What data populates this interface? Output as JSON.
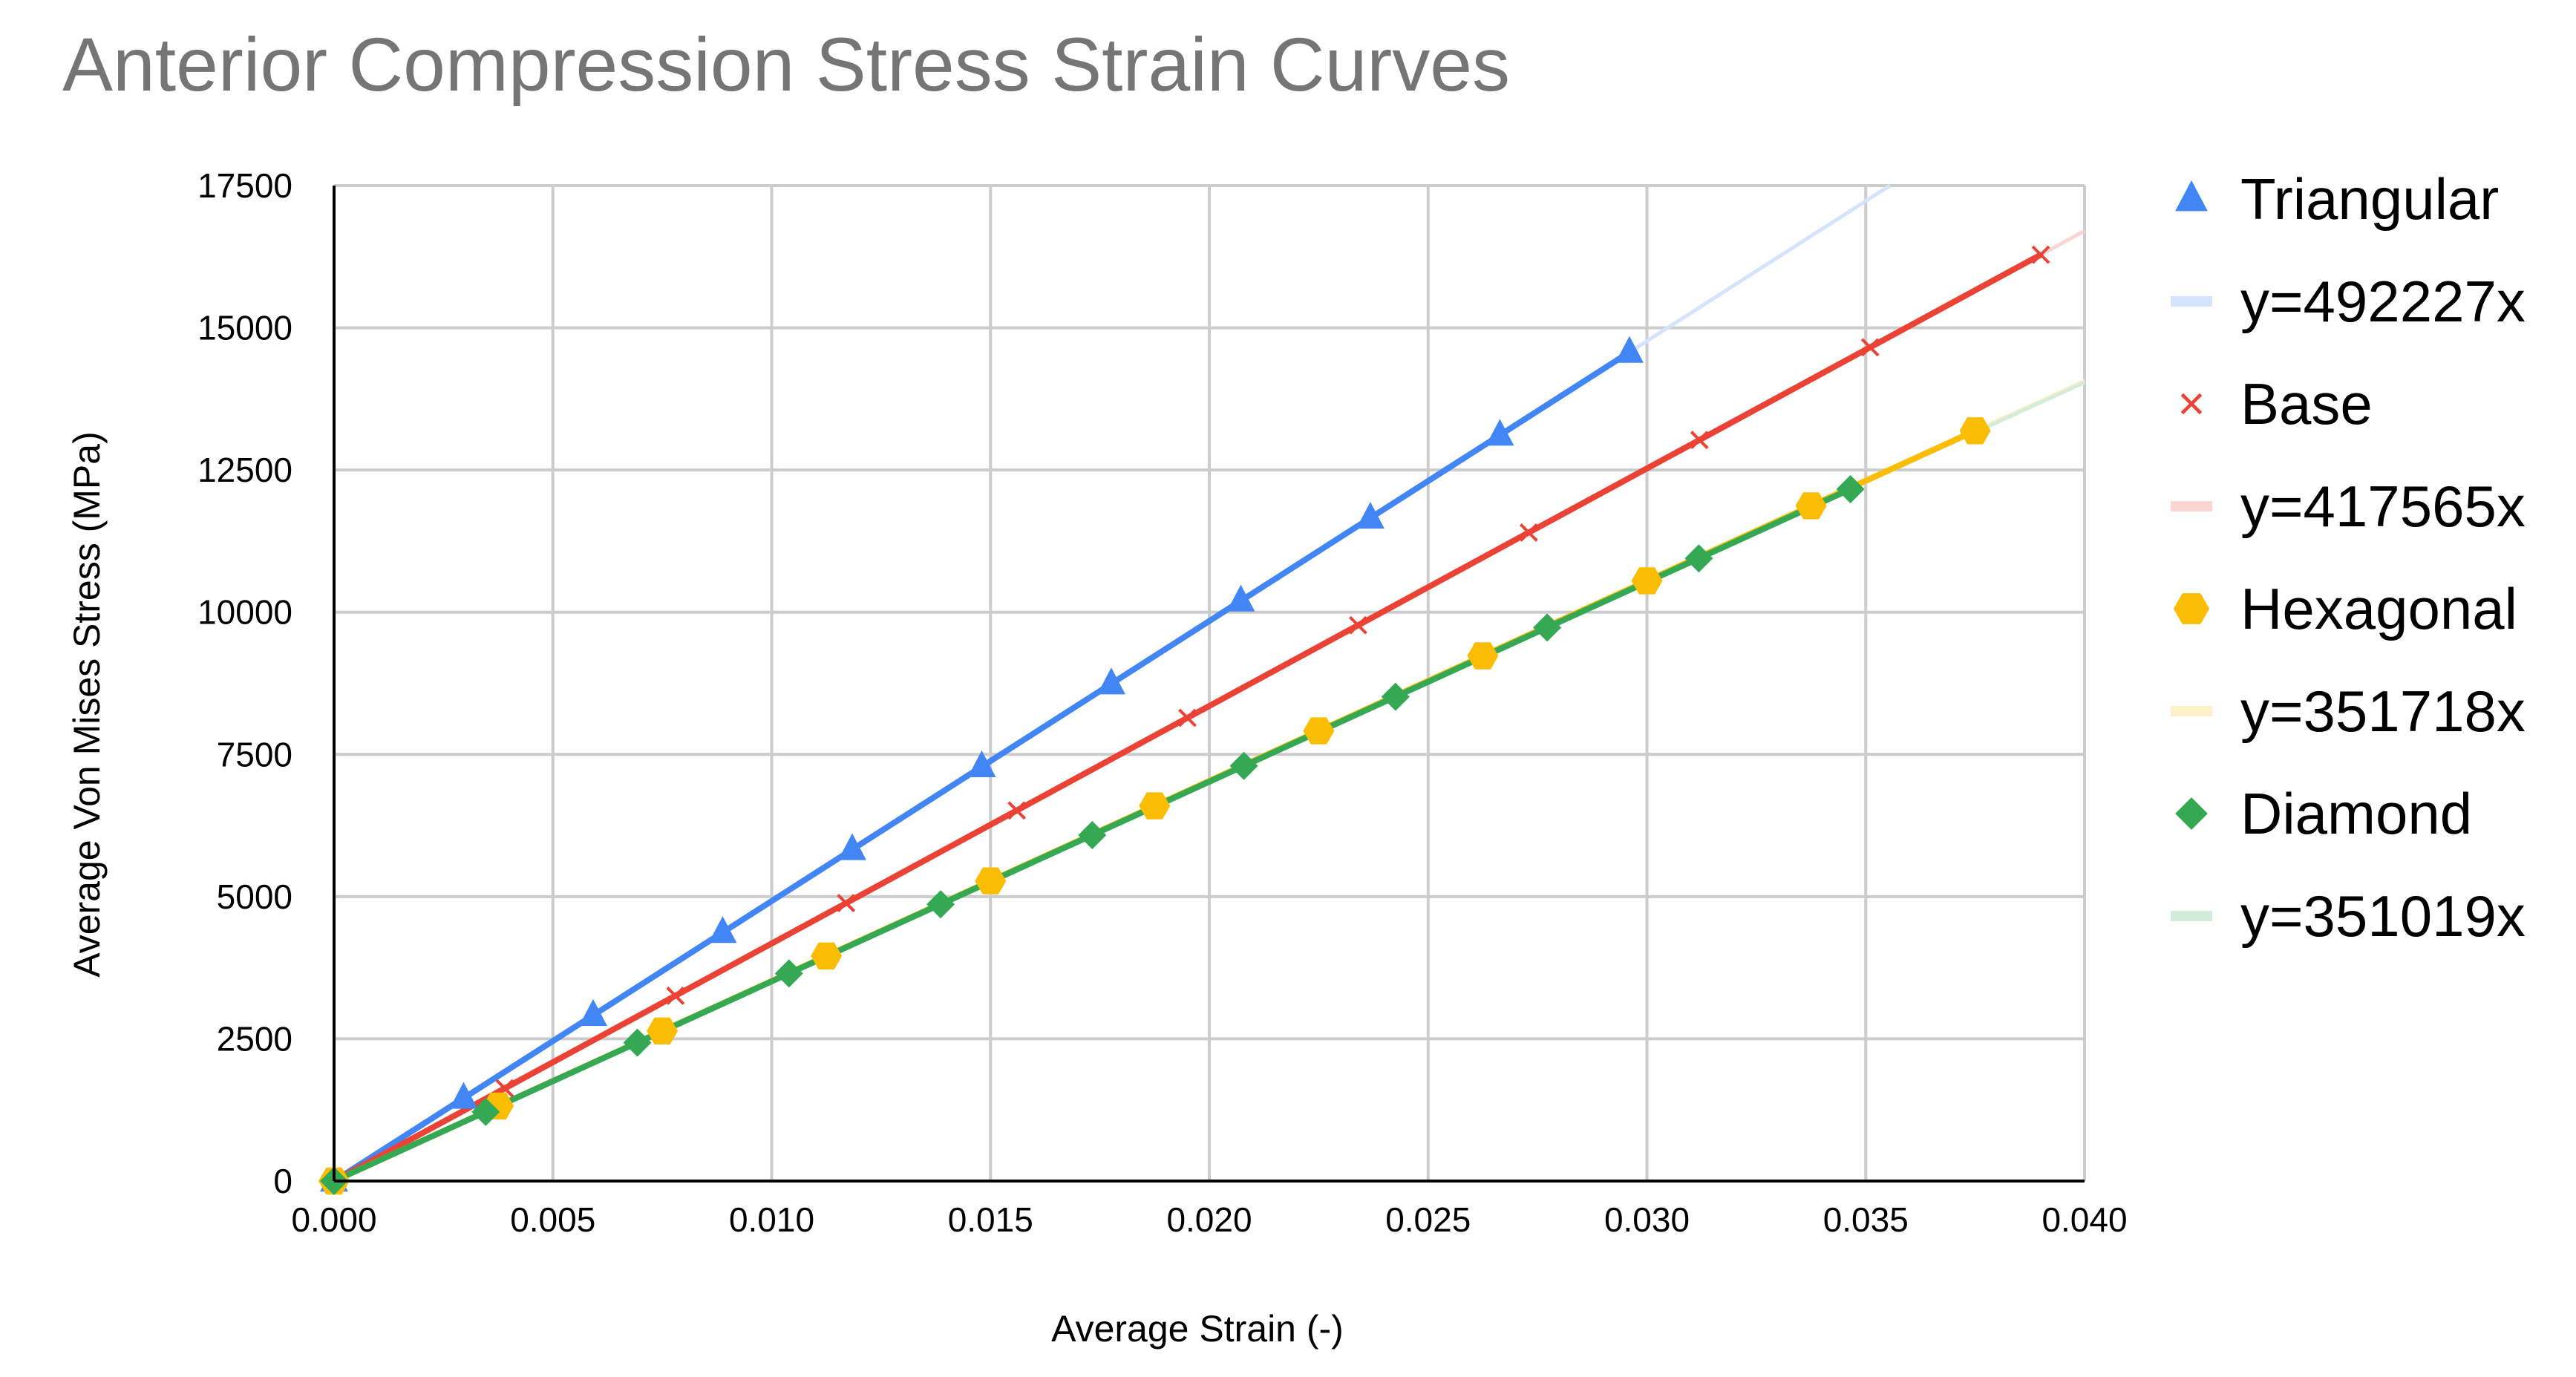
{
  "chart_data": {
    "type": "scatter",
    "title": "Anterior Compression Stress Strain Curves",
    "xlabel": "Average Strain (-)",
    "ylabel": "Average Von Mises Stress (MPa)",
    "xlim": [
      0,
      0.04
    ],
    "ylim": [
      0,
      17500
    ],
    "x_ticks": [
      0,
      0.005,
      0.01,
      0.015,
      0.02,
      0.025,
      0.03,
      0.035,
      0.04
    ],
    "x_tick_labels": [
      "0.000",
      "0.005",
      "0.010",
      "0.015",
      "0.020",
      "0.025",
      "0.030",
      "0.035",
      "0.040"
    ],
    "y_ticks": [
      0,
      2500,
      5000,
      7500,
      10000,
      12500,
      15000,
      17500
    ],
    "y_tick_labels": [
      "0",
      "2500",
      "5000",
      "7500",
      "10000",
      "12500",
      "15000",
      "17500"
    ],
    "grid": true,
    "legend_position": "right",
    "series": [
      {
        "name": "Triangular",
        "color": "#4285f4",
        "marker": "triangle",
        "trendline": "y=492227x",
        "slope": 492227,
        "x": [
          0,
          0.00296,
          0.00592,
          0.00888,
          0.01184,
          0.0148,
          0.01776,
          0.02072,
          0.02368,
          0.02664,
          0.0296
        ],
        "y": [
          0,
          1457,
          2914,
          4371,
          5828,
          7285,
          8742,
          10199,
          11656,
          13113,
          14570
        ]
      },
      {
        "name": "Base",
        "color": "#ea4335",
        "marker": "x",
        "trendline": "y=417565x",
        "slope": 417565,
        "x": [
          0,
          0.0039,
          0.0078,
          0.0117,
          0.0156,
          0.0195,
          0.0234,
          0.0273,
          0.0312,
          0.0351,
          0.039
        ],
        "y": [
          0,
          1629,
          3257,
          4886,
          6514,
          8143,
          9771,
          11400,
          13028,
          14657,
          16285
        ]
      },
      {
        "name": "Hexagonal",
        "color": "#fbbc04",
        "marker": "hexagon",
        "trendline": "y=351718x",
        "slope": 351718,
        "x": [
          0,
          0.00375,
          0.0075,
          0.01125,
          0.015,
          0.01875,
          0.0225,
          0.02625,
          0.03,
          0.03375,
          0.0375
        ],
        "y": [
          0,
          1319,
          2638,
          3957,
          5276,
          6595,
          7914,
          9233,
          10552,
          11871,
          13190
        ]
      },
      {
        "name": "Diamond",
        "color": "#34a853",
        "marker": "diamond",
        "trendline": "y=351019x",
        "slope": 351019,
        "x": [
          0,
          0.003465,
          0.00693,
          0.010395,
          0.01386,
          0.017325,
          0.02079,
          0.024255,
          0.02772,
          0.031185,
          0.03465
        ],
        "y": [
          0,
          1216,
          2433,
          3649,
          4865,
          6081,
          7298,
          8514,
          9730,
          10946,
          12163
        ]
      }
    ],
    "legend": [
      {
        "label": "Triangular",
        "kind": "marker",
        "series": 0
      },
      {
        "label": "y=492227x",
        "kind": "trendline",
        "series": 0
      },
      {
        "label": "Base",
        "kind": "marker",
        "series": 1
      },
      {
        "label": "y=417565x",
        "kind": "trendline",
        "series": 1
      },
      {
        "label": "Hexagonal",
        "kind": "marker",
        "series": 2
      },
      {
        "label": "y=351718x",
        "kind": "trendline",
        "series": 2
      },
      {
        "label": "Diamond",
        "kind": "marker",
        "series": 3
      },
      {
        "label": "y=351019x",
        "kind": "trendline",
        "series": 3
      }
    ]
  }
}
